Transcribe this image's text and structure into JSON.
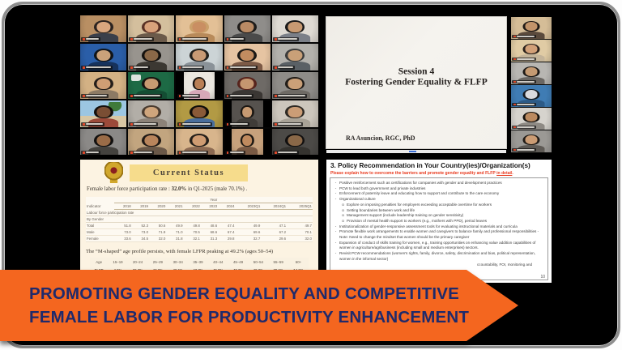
{
  "colors": {
    "banner_orange": "#f4661f",
    "banner_text": "#1f2a6b",
    "active_green": "#3fae68",
    "mic_red": "#e0482a",
    "cream": "#fcf3e2",
    "titlebar_yellow": "#f6dc8c",
    "frame_border": "#8e8e8e",
    "emblem_gold": "#d1a72c",
    "emblem_red": "#8a1f1f",
    "subtitle_red": "#e8391d"
  },
  "banner": {
    "line1": "PROMOTING GENDER EQUALITY AND COMPETITIVE",
    "line2": "FEMALE LABOR FOR PRODUCTIVITY ENHANCEMENT"
  },
  "share": {
    "slide": {
      "title_line1": "Session 4",
      "title_line2": "Fostering Gender Equality & FLFP",
      "presenter": "RA Asuncion, RGC, PhD"
    },
    "filmstrip": [
      {
        "bg": "#d5bd97",
        "skin": "#c2946a",
        "hair": "#1f1a16",
        "shirt": "#5a4a3c",
        "active": false
      },
      {
        "bg": "#e0cba4",
        "skin": "#d2a078",
        "hair": "#2a211c",
        "shirt": "#c4b49a",
        "active": false
      },
      {
        "bg": "#b8b6b2",
        "skin": "#c59a72",
        "hair": "#1d1916",
        "shirt": "#6a6662",
        "active": true
      },
      {
        "bg": "#3f7cb4",
        "skin": "#d9dade",
        "hair": "#15191e",
        "shirt": "#2c5a86",
        "active": false
      },
      {
        "bg": "#d6d3cd",
        "skin": "#bb8a60",
        "hair": "#16130f",
        "shirt": "#8e8a84",
        "active": false
      },
      {
        "bg": "#9b9995",
        "skin": "#cb9c74",
        "hair": "#221d18",
        "shirt": "#5e5a55",
        "active": false
      }
    ]
  },
  "gallery": {
    "tiles": [
      {
        "bg": "#b98f63",
        "skin": "#d8a67e",
        "hair": "#2b2320",
        "shirt": "#3a3f4a"
      },
      {
        "bg": "#d4bf9d",
        "skin": "#d9a27b",
        "hair": "#5a3226",
        "shirt": "#6b5a4a"
      },
      {
        "bg": "#e3c096",
        "skin": "#c98e62",
        "hair": "#caa06a",
        "shirt": "#b88a5a"
      },
      {
        "bg": "#8f8d8a",
        "skin": "#b98a64",
        "hair": "#1e1c1a",
        "shirt": "#4a4a4a"
      },
      {
        "bg": "#dedad3",
        "skin": "#c89a72",
        "hair": "#1a1a1a",
        "shirt": "#7a7f88"
      },
      {
        "bg": "#2a5ea8",
        "skin": "#caa27a",
        "hair": "#101418",
        "shirt": "#16325c"
      },
      {
        "bg": "#98948e",
        "skin": "#8a6848",
        "hair": "#15120f",
        "shirt": "#3c3832"
      },
      {
        "bg": "#ccd4d6",
        "skin": "#c99a74",
        "hair": "#23201c",
        "shirt": "#8a9298"
      },
      {
        "bg": "#e6c4a2",
        "skin": "#c28c60",
        "hair": "#1c1916",
        "shirt": "#7c5a46",
        "active": true
      },
      {
        "bg": "#b3b1ac",
        "skin": "#c9a078",
        "hair": "#3c3c3c",
        "shirt": "#5a6065"
      },
      {
        "bg": "#d3b184",
        "skin": "#cf9e74",
        "hair": "#241e1a",
        "shirt": "#8c7a64"
      },
      {
        "bg": "#1d6a45",
        "skin": "#c89a72",
        "hair": "#17120f",
        "shirt": "#144d33",
        "logo": true
      },
      {
        "bg": "#eae6df",
        "skin": "#b97f55",
        "hair": "#191512",
        "shirt": "#d8a8b8",
        "narrow": true
      },
      {
        "bg": "#6e6a66",
        "skin": "#c59670",
        "hair": "#57241d",
        "shirt": "#3a3633"
      },
      {
        "bg": "#8e8c88",
        "skin": "#caa078",
        "hair": "#211d19",
        "shirt": "#6e6a64"
      },
      {
        "bg": "#a9c8dd",
        "skin": "#7a4e34",
        "hair": "#14100d",
        "shirt": "#9c4a3a",
        "scene": "beach"
      },
      {
        "bg": "#b2aea7",
        "skin": "#cfa57c",
        "hair": "#4a3c30",
        "shirt": "#8c8278"
      },
      {
        "bg": "#b29a44",
        "skin": "#8a5a38",
        "hair": "#0f0d0a",
        "shirt": "#4a6e9c"
      },
      {
        "bg": "#56524e",
        "skin": "#c79a72",
        "hair": "#1b1713",
        "shirt": "#403c38",
        "narrow": true
      },
      {
        "bg": "#ccc6bc",
        "skin": "#cb9d76",
        "hair": "#2e2a24",
        "shirt": "#a8a296"
      },
      {
        "bg": "#8b8987",
        "skin": "#9a6c48",
        "hair": "#131110",
        "shirt": "#44423e"
      },
      {
        "bg": "#c2a57f",
        "skin": "#b9855c",
        "hair": "#201a16",
        "shirt": "#6a5848"
      },
      {
        "bg": "#d8b58c",
        "skin": "#cf9c72",
        "hair": "#241f1a",
        "shirt": "#8c6a52"
      },
      {
        "bg": "#c7a17c",
        "skin": "#c08a5e",
        "hair": "#1e1914",
        "shirt": "#7a5a44",
        "narrow": true
      },
      {
        "bg": "#4c4a47",
        "skin": "#8a6848",
        "hair": "#121010",
        "shirt": "#35332f"
      }
    ]
  },
  "status_slide": {
    "title": "Current Status",
    "intro_prefix": "Female labor force participation rate : ",
    "intro_bold": "32.0%",
    "intro_suffix": " in Q1-2025 (male 70.1%) .",
    "table": {
      "corner": "Indicator",
      "group_header": "Year",
      "years": [
        "2018",
        "2019",
        "2020",
        "2021",
        "2022",
        "2023",
        "2024",
        "2023Q1",
        "2024Q1",
        "2025Q1"
      ],
      "section_rows": [
        "Labour force participation rate",
        "By Gender"
      ],
      "rows": [
        {
          "label": "Total",
          "values": [
            "51.8",
            "52.3",
            "50.6",
            "49.9",
            "49.8",
            "48.6",
            "47.4",
            "49.9",
            "47.1",
            "49.7"
          ]
        },
        {
          "label": "Male",
          "values": [
            "73.0",
            "73.0",
            "71.9",
            "71.0",
            "70.5",
            "68.6",
            "67.4",
            "69.6",
            "67.2",
            "70.1"
          ]
        },
        {
          "label": "Female",
          "values": [
            "33.6",
            "34.5",
            "32.0",
            "31.8",
            "32.1",
            "31.3",
            "29.8",
            "32.7",
            "29.6",
            "32.0"
          ]
        }
      ]
    },
    "mshape_text": "The “M-shaped” age profile persists, with female LFPR peaking at 49.2% (ages 50–54)",
    "age_table": {
      "header": [
        "Age",
        "15–19",
        "20–24",
        "25–29",
        "30–34",
        "35–39",
        "40–44",
        "45–49",
        "50–54",
        "55–59",
        "60+"
      ],
      "row": [
        "FLFP",
        "4.9%",
        "36.7%",
        "43.2%",
        "42.6%",
        "43.7%",
        "45.8%",
        "47.2%",
        "49.2%",
        "39.6%",
        "14.9%"
      ]
    }
  },
  "policy_slide": {
    "title": "3. Policy Recommendation in Your Country(ies)/Organization(s)",
    "subtitle_main": "Please explain how to overcome the barriers and promote gender equality and FLFP ",
    "subtitle_underline": "in detail",
    "subtitle_period": ".",
    "bullets": [
      {
        "level": 0,
        "text": "Positive reinforcement such as certifications for companies with gender and development practices"
      },
      {
        "level": 0,
        "text": "PCW to lead both government and private industries"
      },
      {
        "level": 0,
        "text": "Enforcement of paternity leave and educating how to support and contribute to the care economy"
      },
      {
        "level": 0,
        "text": "Organizational culture"
      },
      {
        "level": 1,
        "text": "Explore on imposing penalties for employers exceeding acceptable overtime for workers"
      },
      {
        "level": 1,
        "text": "Setting boundaries between work and life"
      },
      {
        "level": 1,
        "text": "Management support (include leadership training on gender sensitivity)"
      },
      {
        "level": 1,
        "text": "Provision of mental health support to workers (e.g., mothers with PPD), period leaves"
      },
      {
        "level": 0,
        "text": "Institutionalization of gender-responsive assessment tools for evaluating instructional materials and curricula"
      },
      {
        "level": 0,
        "text": "Promote flexible work arrangements to enable women and caregivers to balance family and professional responsibilities - Note: Need to change the mindset that women should be the primary caregiver"
      },
      {
        "level": 0,
        "text": "Expansion of conduct of skills training for women, e.g., training opportunities on enhancing value addition capabilities of women in agriculture/agribusiness (including small and medium enterprises) sectors."
      },
      {
        "level": 0,
        "text": "Revisit PCW recommendations (women's rights, family, divorce, safety, discrimination and bias, political representation, women in the informal sector)"
      },
      {
        "level": 0,
        "cutoff": true,
        "text": "ccountability, FOI, monitoring and"
      }
    ],
    "page_number": "10"
  }
}
